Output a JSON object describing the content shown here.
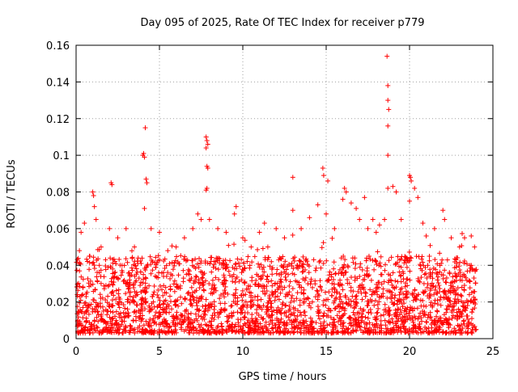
{
  "chart_data": {
    "type": "scatter",
    "title": "Day 095 of 2025, Rate Of TEC Index for receiver p779",
    "xlabel": "GPS time / hours",
    "ylabel": "ROTI / TECUs",
    "xlim": [
      0,
      25
    ],
    "ylim": [
      0,
      0.16
    ],
    "x_ticks": [
      0,
      5,
      10,
      15,
      20,
      25
    ],
    "x_tick_labels": [
      "0",
      "5",
      "10",
      "15",
      "20",
      "25"
    ],
    "y_ticks": [
      0,
      0.02,
      0.04,
      0.06,
      0.08,
      0.1,
      0.12,
      0.14,
      0.16
    ],
    "y_tick_labels": [
      "0",
      "0.02",
      "0.04",
      "0.06",
      "0.08",
      "0.1",
      "0.12",
      "0.14",
      "0.16"
    ],
    "grid": true,
    "marker": "+",
    "color": "#ff0000",
    "series": [
      {
        "name": "ROTI",
        "points": [
          [
            0.1,
            0.01
          ],
          [
            0.2,
            0.048
          ],
          [
            0.3,
            0.058
          ],
          [
            0.5,
            0.063
          ],
          [
            0.8,
            0.045
          ],
          [
            1.0,
            0.08
          ],
          [
            1.05,
            0.078
          ],
          [
            1.1,
            0.072
          ],
          [
            1.2,
            0.065
          ],
          [
            1.5,
            0.05
          ],
          [
            2.0,
            0.06
          ],
          [
            2.1,
            0.085
          ],
          [
            2.15,
            0.084
          ],
          [
            2.5,
            0.055
          ],
          [
            3.0,
            0.06
          ],
          [
            3.5,
            0.05
          ],
          [
            4.0,
            0.1
          ],
          [
            4.05,
            0.101
          ],
          [
            4.1,
            0.099
          ],
          [
            4.15,
            0.115
          ],
          [
            4.2,
            0.087
          ],
          [
            4.25,
            0.085
          ],
          [
            4.1,
            0.071
          ],
          [
            4.5,
            0.06
          ],
          [
            5.0,
            0.058
          ],
          [
            5.5,
            0.048
          ],
          [
            6.0,
            0.05
          ],
          [
            6.5,
            0.055
          ],
          [
            7.0,
            0.06
          ],
          [
            7.3,
            0.068
          ],
          [
            7.5,
            0.065
          ],
          [
            7.8,
            0.11
          ],
          [
            7.85,
            0.108
          ],
          [
            7.9,
            0.106
          ],
          [
            7.8,
            0.104
          ],
          [
            7.85,
            0.094
          ],
          [
            7.9,
            0.093
          ],
          [
            7.8,
            0.081
          ],
          [
            7.85,
            0.082
          ],
          [
            8.0,
            0.065
          ],
          [
            8.5,
            0.06
          ],
          [
            9.0,
            0.058
          ],
          [
            9.5,
            0.068
          ],
          [
            9.6,
            0.072
          ],
          [
            10.0,
            0.055
          ],
          [
            10.5,
            0.05
          ],
          [
            11.0,
            0.058
          ],
          [
            11.3,
            0.063
          ],
          [
            11.5,
            0.05
          ],
          [
            12.0,
            0.06
          ],
          [
            12.5,
            0.055
          ],
          [
            13.0,
            0.088
          ],
          [
            13.0,
            0.07
          ],
          [
            13.5,
            0.06
          ],
          [
            14.0,
            0.066
          ],
          [
            14.5,
            0.073
          ],
          [
            14.8,
            0.093
          ],
          [
            14.85,
            0.089
          ],
          [
            15.1,
            0.086
          ],
          [
            15.0,
            0.068
          ],
          [
            15.5,
            0.06
          ],
          [
            16.0,
            0.076
          ],
          [
            16.1,
            0.082
          ],
          [
            16.2,
            0.08
          ],
          [
            16.5,
            0.074
          ],
          [
            16.8,
            0.071
          ],
          [
            17.0,
            0.065
          ],
          [
            17.3,
            0.077
          ],
          [
            17.5,
            0.06
          ],
          [
            17.8,
            0.065
          ],
          [
            18.0,
            0.058
          ],
          [
            18.2,
            0.062
          ],
          [
            18.5,
            0.065
          ],
          [
            18.65,
            0.154
          ],
          [
            18.7,
            0.138
          ],
          [
            18.7,
            0.13
          ],
          [
            18.75,
            0.125
          ],
          [
            18.7,
            0.116
          ],
          [
            18.7,
            0.1
          ],
          [
            18.7,
            0.082
          ],
          [
            19.0,
            0.083
          ],
          [
            19.2,
            0.08
          ],
          [
            19.5,
            0.065
          ],
          [
            20.0,
            0.089
          ],
          [
            20.05,
            0.088
          ],
          [
            20.1,
            0.086
          ],
          [
            20.0,
            0.075
          ],
          [
            20.3,
            0.082
          ],
          [
            20.5,
            0.077
          ],
          [
            20.8,
            0.063
          ],
          [
            21.0,
            0.056
          ],
          [
            21.5,
            0.06
          ],
          [
            22.0,
            0.07
          ],
          [
            22.1,
            0.065
          ],
          [
            22.5,
            0.055
          ],
          [
            23.0,
            0.05
          ],
          [
            23.3,
            0.055
          ],
          [
            23.7,
            0.056
          ],
          [
            23.9,
            0.05
          ]
        ],
        "background_band": {
          "description": "dense cloud of points across 0-24 h",
          "x_range": [
            0,
            24
          ],
          "typical_range": [
            0.003,
            0.045
          ]
        }
      }
    ]
  }
}
